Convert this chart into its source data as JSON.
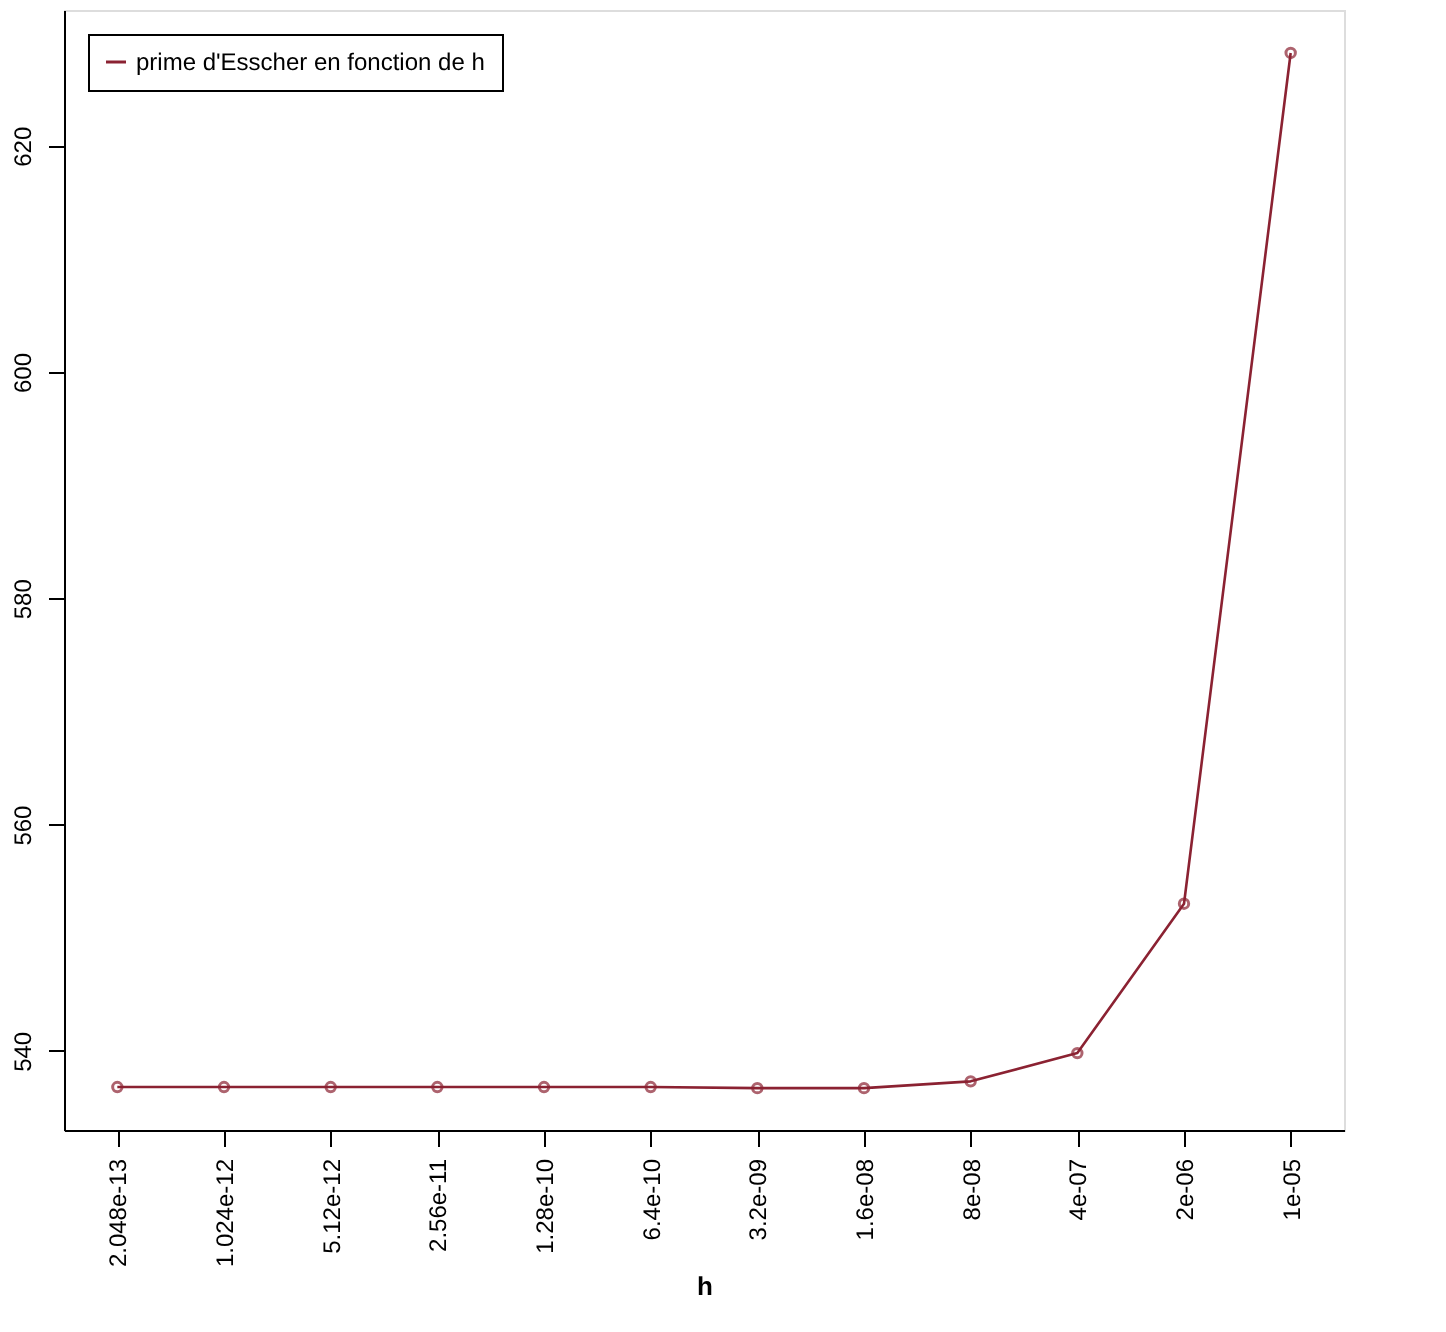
{
  "chart_data": {
    "type": "line",
    "xlabel": "h",
    "categories": [
      "2.048e-13",
      "1.024e-12",
      "5.12e-12",
      "2.56e-11",
      "1.28e-10",
      "6.4e-10",
      "3.2e-09",
      "1.6e-08",
      "8e-08",
      "4e-07",
      "2e-06",
      "1e-05"
    ],
    "series": [
      {
        "name": "prime d'Esscher en fonction de h",
        "color": "#8b2232",
        "values": [
          536.8,
          536.8,
          536.8,
          536.8,
          536.8,
          536.8,
          536.7,
          536.7,
          537.3,
          539.8,
          553,
          628.2
        ]
      }
    ],
    "ylim": [
      533,
      632
    ],
    "yticks": [
      540,
      560,
      580,
      600,
      620
    ],
    "grid": false,
    "legend": "top left",
    "marker": "circle",
    "line_style": "solid"
  }
}
